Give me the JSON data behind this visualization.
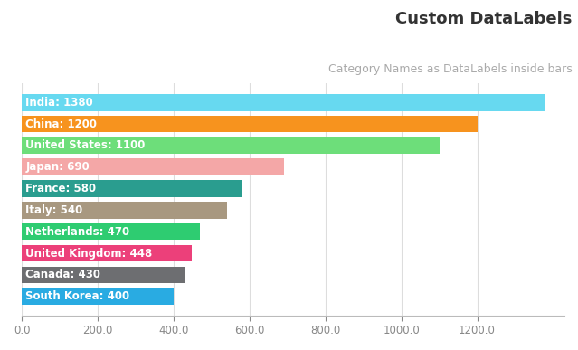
{
  "categories": [
    "India",
    "China",
    "United States",
    "Japan",
    "France",
    "Italy",
    "Netherlands",
    "United Kingdom",
    "Canada",
    "South Korea"
  ],
  "values": [
    1380,
    1200,
    1100,
    690,
    580,
    540,
    470,
    448,
    430,
    400
  ],
  "colors": [
    "#67D9F0",
    "#F7931E",
    "#6DDE7A",
    "#F4A7A7",
    "#2A9D8F",
    "#A89880",
    "#2ECC71",
    "#EC407A",
    "#6D6E71",
    "#29ABE2"
  ],
  "title": "Custom DataLabels",
  "subtitle": "Category Names as DataLabels inside bars",
  "title_color": "#333333",
  "subtitle_color": "#aaaaaa",
  "label_color": "#ffffff",
  "background_color": "#ffffff",
  "xlim": [
    0,
    1430
  ],
  "xticks": [
    0.0,
    200.0,
    400.0,
    600.0,
    800.0,
    1000.0,
    1200.0
  ],
  "bar_height": 0.78,
  "label_fontsize": 8.5,
  "title_fontsize": 13,
  "subtitle_fontsize": 9
}
